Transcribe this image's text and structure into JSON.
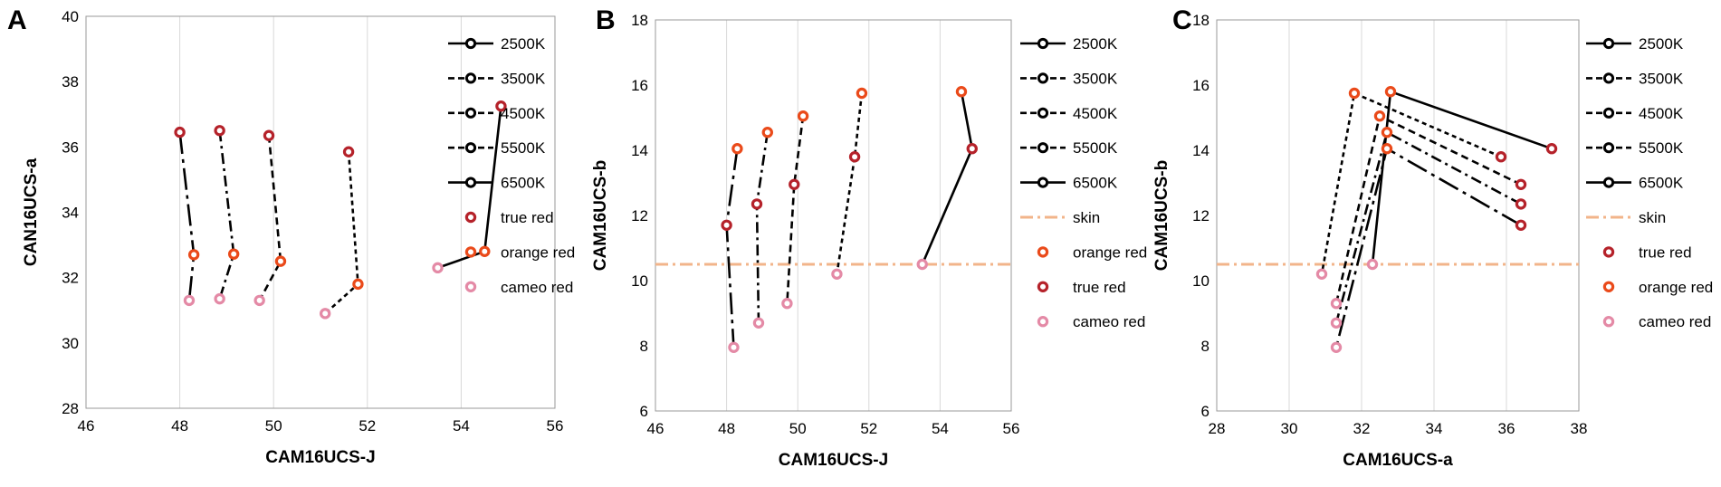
{
  "figure": {
    "colors": {
      "line": "#000000",
      "true_red": "#b5222a",
      "orange_red": "#ea4a1a",
      "cameo_red": "#e48aa6",
      "skin": "#f2b48a",
      "grid": "#d9d9d9",
      "frame": "#9a9a9a"
    }
  },
  "chart_data": [
    {
      "panel": "A",
      "type": "line",
      "xlabel": "CAM16UCS-J",
      "ylabel": "CAN16UCS-a",
      "xlim": [
        46,
        56
      ],
      "ylim": [
        28,
        40
      ],
      "xticks": [
        46,
        48,
        50,
        52,
        54,
        56
      ],
      "yticks": [
        28,
        30,
        32,
        34,
        36,
        38,
        40
      ],
      "grid": "vertical",
      "legend": [
        {
          "label": "2500K",
          "kind": "line",
          "dash": "solid"
        },
        {
          "label": "3500K",
          "kind": "line",
          "dash": "dash"
        },
        {
          "label": "4500K",
          "kind": "line",
          "dash": "dash"
        },
        {
          "label": "5500K",
          "kind": "line",
          "dash": "dash"
        },
        {
          "label": "6500K",
          "kind": "line",
          "dash": "solid"
        },
        {
          "label": "true red",
          "kind": "marker",
          "color": "true_red"
        },
        {
          "label": "orange red",
          "kind": "marker",
          "color": "orange_red"
        },
        {
          "label": "cameo red",
          "kind": "marker",
          "color": "cameo_red"
        }
      ],
      "lines": [
        {
          "dash": "longdash",
          "points": [
            [
              48.0,
              36.45
            ],
            [
              48.3,
              32.7
            ],
            [
              48.2,
              31.3
            ]
          ]
        },
        {
          "dash": "dashdot",
          "points": [
            [
              48.85,
              36.5
            ],
            [
              49.15,
              32.72
            ],
            [
              48.85,
              31.35
            ]
          ]
        },
        {
          "dash": "dash",
          "points": [
            [
              49.9,
              36.35
            ],
            [
              50.15,
              32.5
            ],
            [
              49.7,
              31.3
            ]
          ]
        },
        {
          "dash": "shortdash",
          "points": [
            [
              51.6,
              35.85
            ],
            [
              51.8,
              31.8
            ],
            [
              51.1,
              30.9
            ]
          ]
        },
        {
          "dash": "solid",
          "points": [
            [
              54.85,
              37.25
            ],
            [
              54.5,
              32.8
            ],
            [
              53.5,
              32.3
            ]
          ]
        }
      ],
      "markers": [
        {
          "x": 48.0,
          "y": 36.45,
          "color": "true_red"
        },
        {
          "x": 48.85,
          "y": 36.5,
          "color": "true_red"
        },
        {
          "x": 49.9,
          "y": 36.35,
          "color": "true_red"
        },
        {
          "x": 51.6,
          "y": 35.85,
          "color": "true_red"
        },
        {
          "x": 54.85,
          "y": 37.25,
          "color": "true_red"
        },
        {
          "x": 48.3,
          "y": 32.7,
          "color": "orange_red"
        },
        {
          "x": 49.15,
          "y": 32.72,
          "color": "orange_red"
        },
        {
          "x": 50.15,
          "y": 32.5,
          "color": "orange_red"
        },
        {
          "x": 51.8,
          "y": 31.8,
          "color": "orange_red"
        },
        {
          "x": 54.5,
          "y": 32.8,
          "color": "orange_red"
        },
        {
          "x": 48.2,
          "y": 31.3,
          "color": "cameo_red"
        },
        {
          "x": 48.85,
          "y": 31.35,
          "color": "cameo_red"
        },
        {
          "x": 49.7,
          "y": 31.3,
          "color": "cameo_red"
        },
        {
          "x": 51.1,
          "y": 30.9,
          "color": "cameo_red"
        },
        {
          "x": 53.5,
          "y": 32.3,
          "color": "cameo_red"
        }
      ]
    },
    {
      "panel": "B",
      "type": "line",
      "xlabel": "CAM16UCS-J",
      "ylabel": "CAM16UCS-b",
      "xlim": [
        46,
        56
      ],
      "ylim": [
        6,
        18
      ],
      "xticks": [
        46,
        48,
        50,
        52,
        54,
        56
      ],
      "yticks": [
        6,
        8,
        10,
        12,
        14,
        16,
        18
      ],
      "grid": "vertical",
      "skin_line": 10.5,
      "legend": [
        {
          "label": "2500K",
          "kind": "line",
          "dash": "solid"
        },
        {
          "label": "3500K",
          "kind": "line",
          "dash": "dash"
        },
        {
          "label": "4500K",
          "kind": "line",
          "dash": "dash"
        },
        {
          "label": "5500K",
          "kind": "line",
          "dash": "dash"
        },
        {
          "label": "6500K",
          "kind": "line",
          "dash": "solid"
        },
        {
          "label": "skin",
          "kind": "skin"
        },
        {
          "label": "orange red",
          "kind": "marker",
          "color": "orange_red"
        },
        {
          "label": "true red",
          "kind": "marker",
          "color": "true_red"
        },
        {
          "label": "cameo red",
          "kind": "marker",
          "color": "cameo_red"
        }
      ],
      "lines": [
        {
          "dash": "longdash",
          "points": [
            [
              48.3,
              14.05
            ],
            [
              48.0,
              11.7
            ],
            [
              48.2,
              7.95
            ]
          ]
        },
        {
          "dash": "dashdot",
          "points": [
            [
              49.15,
              14.55
            ],
            [
              48.85,
              12.35
            ],
            [
              48.9,
              8.7
            ]
          ]
        },
        {
          "dash": "dash",
          "points": [
            [
              50.15,
              15.05
            ],
            [
              49.9,
              12.95
            ],
            [
              49.7,
              9.3
            ]
          ]
        },
        {
          "dash": "shortdash",
          "points": [
            [
              51.8,
              15.75
            ],
            [
              51.6,
              13.8
            ],
            [
              51.1,
              10.2
            ]
          ]
        },
        {
          "dash": "solid",
          "points": [
            [
              54.6,
              15.8
            ],
            [
              54.9,
              14.05
            ],
            [
              53.5,
              10.5
            ]
          ]
        }
      ],
      "markers": [
        {
          "x": 48.3,
          "y": 14.05,
          "color": "orange_red"
        },
        {
          "x": 49.15,
          "y": 14.55,
          "color": "orange_red"
        },
        {
          "x": 50.15,
          "y": 15.05,
          "color": "orange_red"
        },
        {
          "x": 51.8,
          "y": 15.75,
          "color": "orange_red"
        },
        {
          "x": 54.6,
          "y": 15.8,
          "color": "orange_red"
        },
        {
          "x": 48.0,
          "y": 11.7,
          "color": "true_red"
        },
        {
          "x": 48.85,
          "y": 12.35,
          "color": "true_red"
        },
        {
          "x": 49.9,
          "y": 12.95,
          "color": "true_red"
        },
        {
          "x": 51.6,
          "y": 13.8,
          "color": "true_red"
        },
        {
          "x": 54.9,
          "y": 14.05,
          "color": "true_red"
        },
        {
          "x": 48.2,
          "y": 7.95,
          "color": "cameo_red"
        },
        {
          "x": 48.9,
          "y": 8.7,
          "color": "cameo_red"
        },
        {
          "x": 49.7,
          "y": 9.3,
          "color": "cameo_red"
        },
        {
          "x": 51.1,
          "y": 10.2,
          "color": "cameo_red"
        },
        {
          "x": 53.5,
          "y": 10.5,
          "color": "cameo_red"
        }
      ]
    },
    {
      "panel": "C",
      "type": "line",
      "xlabel": "CAM16UCS-a",
      "ylabel": "CAM16UCS-b",
      "xlim": [
        28,
        38
      ],
      "ylim": [
        6,
        18
      ],
      "xticks": [
        28,
        30,
        32,
        34,
        36,
        38
      ],
      "yticks": [
        6,
        8,
        10,
        12,
        14,
        16,
        18
      ],
      "grid": "vertical",
      "skin_line": 10.5,
      "legend": [
        {
          "label": "2500K",
          "kind": "line",
          "dash": "solid"
        },
        {
          "label": "3500K",
          "kind": "line",
          "dash": "dash"
        },
        {
          "label": "4500K",
          "kind": "line",
          "dash": "dash"
        },
        {
          "label": "5500K",
          "kind": "line",
          "dash": "dash"
        },
        {
          "label": "6500K",
          "kind": "line",
          "dash": "solid"
        },
        {
          "label": "skin",
          "kind": "skin"
        },
        {
          "label": "true red",
          "kind": "marker",
          "color": "true_red"
        },
        {
          "label": "orange red",
          "kind": "marker",
          "color": "orange_red"
        },
        {
          "label": "cameo red",
          "kind": "marker",
          "color": "cameo_red"
        }
      ],
      "lines": [
        {
          "dash": "longdash",
          "points": [
            [
              36.4,
              11.7
            ],
            [
              32.7,
              14.05
            ],
            [
              31.3,
              7.95
            ]
          ]
        },
        {
          "dash": "dashdot",
          "points": [
            [
              36.4,
              12.35
            ],
            [
              32.7,
              14.55
            ],
            [
              31.3,
              8.7
            ]
          ]
        },
        {
          "dash": "dash",
          "points": [
            [
              36.4,
              12.95
            ],
            [
              32.5,
              15.05
            ],
            [
              31.3,
              9.3
            ]
          ]
        },
        {
          "dash": "shortdash",
          "points": [
            [
              35.85,
              13.8
            ],
            [
              31.8,
              15.75
            ],
            [
              30.9,
              10.2
            ]
          ]
        },
        {
          "dash": "solid",
          "points": [
            [
              37.25,
              14.05
            ],
            [
              32.8,
              15.8
            ],
            [
              32.3,
              10.5
            ]
          ]
        }
      ],
      "markers": [
        {
          "x": 36.4,
          "y": 11.7,
          "color": "true_red"
        },
        {
          "x": 36.4,
          "y": 12.35,
          "color": "true_red"
        },
        {
          "x": 36.4,
          "y": 12.95,
          "color": "true_red"
        },
        {
          "x": 35.85,
          "y": 13.8,
          "color": "true_red"
        },
        {
          "x": 37.25,
          "y": 14.05,
          "color": "true_red"
        },
        {
          "x": 32.7,
          "y": 14.05,
          "color": "orange_red"
        },
        {
          "x": 32.7,
          "y": 14.55,
          "color": "orange_red"
        },
        {
          "x": 32.5,
          "y": 15.05,
          "color": "orange_red"
        },
        {
          "x": 31.8,
          "y": 15.75,
          "color": "orange_red"
        },
        {
          "x": 32.8,
          "y": 15.8,
          "color": "orange_red"
        },
        {
          "x": 31.3,
          "y": 7.95,
          "color": "cameo_red"
        },
        {
          "x": 31.3,
          "y": 8.7,
          "color": "cameo_red"
        },
        {
          "x": 31.3,
          "y": 9.3,
          "color": "cameo_red"
        },
        {
          "x": 30.9,
          "y": 10.2,
          "color": "cameo_red"
        },
        {
          "x": 32.3,
          "y": 10.5,
          "color": "cameo_red"
        }
      ]
    }
  ]
}
